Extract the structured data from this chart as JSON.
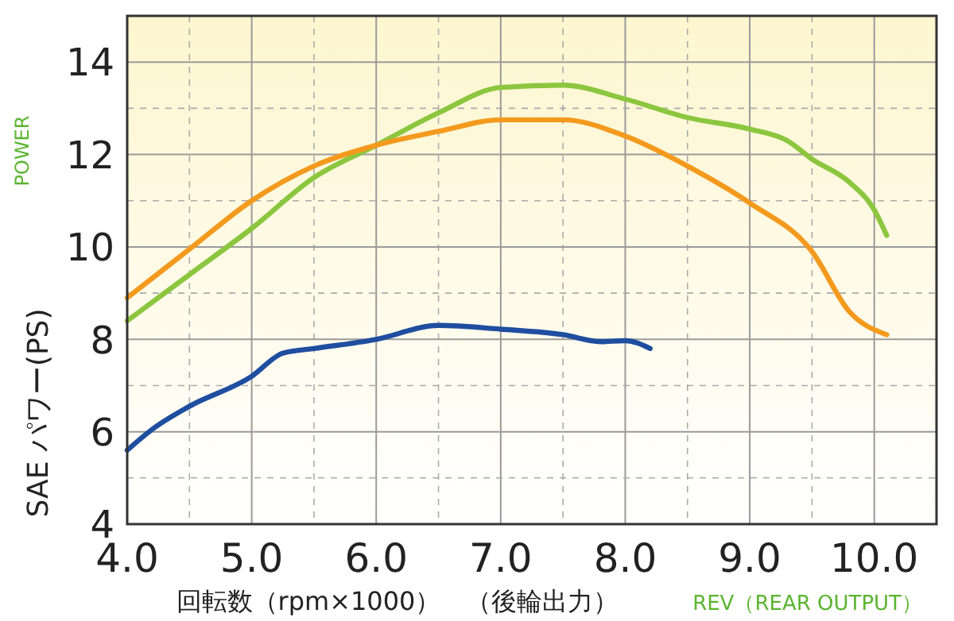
{
  "chart_data": {
    "type": "line",
    "xlabel": "回転数（rpm×1000）　（後輪出力）",
    "ylabel": "SAE パワー(PS)",
    "annotations": [
      "POWER",
      "REV（REAR OUTPUT）"
    ],
    "xlim": [
      4,
      10.5
    ],
    "ylim": [
      4,
      15
    ],
    "xticks": [
      {
        "value": 4,
        "label": "4.0"
      },
      {
        "value": 4.5,
        "label": null
      },
      {
        "value": 5,
        "label": "5.0"
      },
      {
        "value": 5.5,
        "label": null
      },
      {
        "value": 6,
        "label": "6.0"
      },
      {
        "value": 6.5,
        "label": null
      },
      {
        "value": 7,
        "label": "7.0"
      },
      {
        "value": 7.5,
        "label": null
      },
      {
        "value": 8,
        "label": "8.0"
      },
      {
        "value": 8.5,
        "label": null
      },
      {
        "value": 9,
        "label": "9.0"
      },
      {
        "value": 9.5,
        "label": null
      },
      {
        "value": 10,
        "label": "10.0"
      }
    ],
    "yticks": [
      4,
      {
        "value": 5,
        "label": null
      },
      6,
      {
        "value": 7,
        "label": null
      },
      8,
      {
        "value": 9,
        "label": null
      },
      10,
      {
        "value": 11,
        "label": null
      },
      12,
      {
        "value": 13,
        "label": null
      },
      14
    ],
    "grid": true,
    "line_style": "solid",
    "marker": "none",
    "series": [
      {
        "color": "#8cc63f",
        "x": [
          4.0,
          4.5,
          5.0,
          5.5,
          6.0,
          6.5,
          7.0,
          7.5,
          8.0,
          8.5,
          9.0,
          9.3,
          9.5,
          9.8,
          10.0,
          10.1
        ],
        "values": [
          8.4,
          9.4,
          10.4,
          11.5,
          12.2,
          12.9,
          13.45,
          13.5,
          13.2,
          12.8,
          12.55,
          12.3,
          11.9,
          11.4,
          10.8,
          10.25
        ]
      },
      {
        "color": "#f39a1e",
        "x": [
          4.0,
          4.5,
          5.0,
          5.5,
          6.0,
          6.5,
          7.0,
          7.5,
          8.0,
          8.5,
          9.0,
          9.5,
          9.8,
          10.1
        ],
        "values": [
          8.9,
          9.95,
          11.0,
          11.75,
          12.2,
          12.5,
          12.75,
          12.75,
          12.4,
          11.75,
          10.95,
          9.9,
          8.6,
          8.1
        ]
      },
      {
        "color": "#1f4ea0",
        "x": [
          4.0,
          4.2,
          4.5,
          5.0,
          5.25,
          5.5,
          6.0,
          6.5,
          7.0,
          7.5,
          7.8,
          8.0,
          8.2
        ],
        "values": [
          5.6,
          6.05,
          6.55,
          7.2,
          7.7,
          7.8,
          8.0,
          8.3,
          8.22,
          8.1,
          7.95,
          7.97,
          7.8
        ]
      }
    ]
  }
}
